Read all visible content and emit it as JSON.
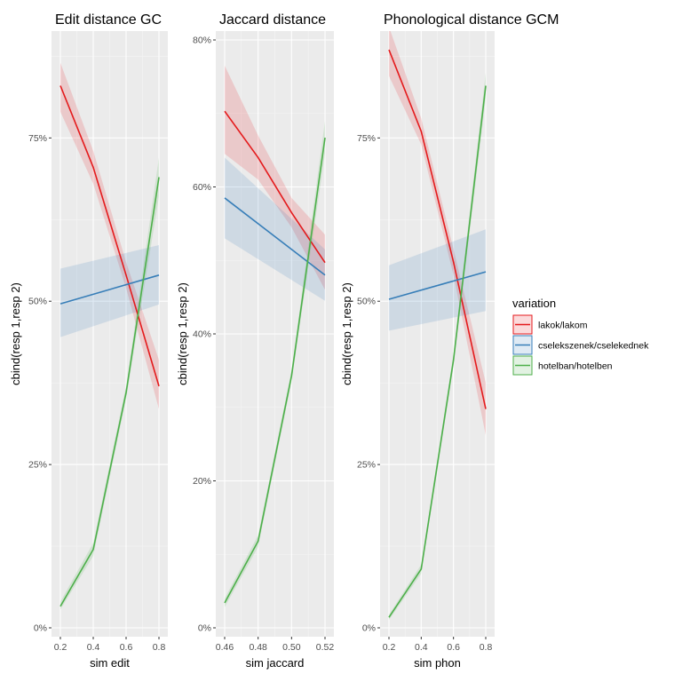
{
  "legend": {
    "title": "variation",
    "entries": [
      {
        "label": "lakok/lakom",
        "color": "#e41a1c"
      },
      {
        "label": "cselekszenek/cselekednek",
        "color": "#377eb8"
      },
      {
        "label": "hotelban/hotelben",
        "color": "#4daf4a"
      }
    ]
  },
  "chart_data": [
    {
      "type": "line",
      "title": "Edit distance GC",
      "xlabel": "sim edit",
      "ylabel": "cbind(resp 1,resp 2)",
      "xlim": [
        0.2,
        0.8
      ],
      "ylim": [
        0,
        0.9
      ],
      "x_ticks": [
        0.2,
        0.4,
        0.6,
        0.8
      ],
      "x_tick_labels": [
        "0.2",
        "0.4",
        "0.6",
        "0.8"
      ],
      "y_ticks": [
        0,
        0.25,
        0.5,
        0.75
      ],
      "y_tick_labels": [
        "0%",
        "25%",
        "50%",
        "75%"
      ],
      "series": [
        {
          "name": "lakok/lakom",
          "x": [
            0.2,
            0.4,
            0.6,
            0.8
          ],
          "y": [
            0.83,
            0.705,
            0.54,
            0.37
          ],
          "lower": [
            0.79,
            0.68,
            0.52,
            0.335
          ],
          "upper": [
            0.865,
            0.73,
            0.56,
            0.41
          ]
        },
        {
          "name": "cselekszenek/cselekednek",
          "x": [
            0.2,
            0.8
          ],
          "y": [
            0.496,
            0.54
          ],
          "lower": [
            0.445,
            0.495
          ],
          "upper": [
            0.55,
            0.586
          ]
        },
        {
          "name": "hotelban/hotelben",
          "x": [
            0.2,
            0.4,
            0.6,
            0.8
          ],
          "y": [
            0.033,
            0.12,
            0.36,
            0.69
          ],
          "lower": [
            0.028,
            0.11,
            0.35,
            0.66
          ],
          "upper": [
            0.04,
            0.13,
            0.37,
            0.72
          ]
        }
      ]
    },
    {
      "type": "line",
      "title": "Jaccard distance",
      "xlabel": "sim jaccard",
      "ylabel": "cbind(resp 1,resp 2)",
      "xlim": [
        0.46,
        0.52
      ],
      "ylim": [
        0,
        0.8
      ],
      "x_ticks": [
        0.46,
        0.48,
        0.5,
        0.52
      ],
      "x_tick_labels": [
        "0.46",
        "0.48",
        "0.50",
        "0.52"
      ],
      "y_ticks": [
        0,
        0.2,
        0.4,
        0.6,
        0.8
      ],
      "y_tick_labels": [
        "0%",
        "20%",
        "40%",
        "60%",
        "80%"
      ],
      "series": [
        {
          "name": "lakok/lakom",
          "x": [
            0.46,
            0.48,
            0.5,
            0.52
          ],
          "y": [
            0.703,
            0.64,
            0.565,
            0.497
          ],
          "lower": [
            0.645,
            0.61,
            0.545,
            0.46
          ],
          "upper": [
            0.765,
            0.67,
            0.585,
            0.535
          ]
        },
        {
          "name": "cselekszenek/cselekednek",
          "x": [
            0.46,
            0.52
          ],
          "y": [
            0.585,
            0.48
          ],
          "lower": [
            0.53,
            0.445
          ],
          "upper": [
            0.64,
            0.515
          ]
        },
        {
          "name": "hotelban/hotelben",
          "x": [
            0.46,
            0.48,
            0.5,
            0.52
          ],
          "y": [
            0.034,
            0.118,
            0.343,
            0.667
          ],
          "lower": [
            0.028,
            0.11,
            0.335,
            0.645
          ],
          "upper": [
            0.04,
            0.126,
            0.351,
            0.69
          ]
        }
      ]
    },
    {
      "type": "line",
      "title": "Phonological distance GCM",
      "xlabel": "sim phon",
      "ylabel": "cbind(resp 1,resp 2)",
      "xlim": [
        0.2,
        0.8
      ],
      "ylim": [
        0,
        0.9
      ],
      "x_ticks": [
        0.2,
        0.4,
        0.6,
        0.8
      ],
      "x_tick_labels": [
        "0.2",
        "0.4",
        "0.6",
        "0.8"
      ],
      "y_ticks": [
        0,
        0.25,
        0.5,
        0.75
      ],
      "y_tick_labels": [
        "0%",
        "25%",
        "50%",
        "75%"
      ],
      "series": [
        {
          "name": "lakok/lakom",
          "x": [
            0.2,
            0.4,
            0.6,
            0.8
          ],
          "y": [
            0.885,
            0.76,
            0.56,
            0.335
          ],
          "lower": [
            0.845,
            0.74,
            0.54,
            0.295
          ],
          "upper": [
            0.92,
            0.78,
            0.58,
            0.375
          ]
        },
        {
          "name": "cselekszenek/cselekednek",
          "x": [
            0.2,
            0.8
          ],
          "y": [
            0.503,
            0.545
          ],
          "lower": [
            0.455,
            0.485
          ],
          "upper": [
            0.555,
            0.61
          ]
        },
        {
          "name": "hotelban/hotelben",
          "x": [
            0.2,
            0.4,
            0.6,
            0.8
          ],
          "y": [
            0.016,
            0.09,
            0.41,
            0.83
          ],
          "lower": [
            0.012,
            0.083,
            0.4,
            0.81
          ],
          "upper": [
            0.02,
            0.097,
            0.42,
            0.85
          ]
        }
      ]
    }
  ]
}
